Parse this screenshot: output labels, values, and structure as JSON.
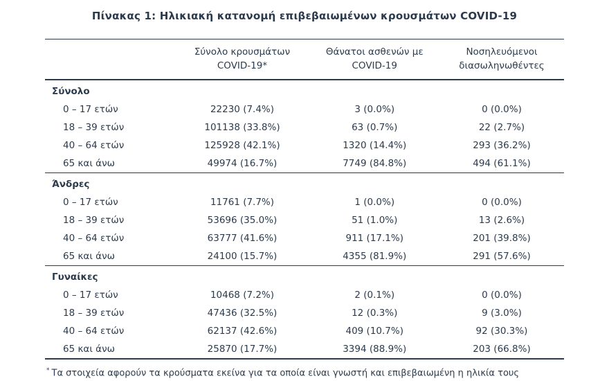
{
  "title": "Πίνακας 1: Ηλικιακή κατανομή επιβεβαιωμένων κρουσμάτων COVID-19",
  "table": {
    "headers": [
      {
        "line1": "Σύνολο κρουσμάτων",
        "line2": "COVID-19*"
      },
      {
        "line1": "Θάνατοι ασθενών με",
        "line2": "COVID-19"
      },
      {
        "line1": "Νοσηλευόμενοι",
        "line2": "διασωληνωθέντες"
      }
    ],
    "sections": [
      {
        "label": "Σύνολο",
        "rows": [
          {
            "label": "0 – 17 ετών",
            "cases": "22230 (7.4%)",
            "deaths": "3 (0.0%)",
            "intubated": "0 (0.0%)"
          },
          {
            "label": "18 – 39 ετών",
            "cases": "101138 (33.8%)",
            "deaths": "63 (0.7%)",
            "intubated": "22 (2.7%)"
          },
          {
            "label": "40 – 64 ετών",
            "cases": "125928 (42.1%)",
            "deaths": "1320 (14.4%)",
            "intubated": "293 (36.2%)"
          },
          {
            "label": "65 και άνω",
            "cases": "49974 (16.7%)",
            "deaths": "7749 (84.8%)",
            "intubated": "494 (61.1%)"
          }
        ]
      },
      {
        "label": "Άνδρες",
        "rows": [
          {
            "label": "0 – 17 ετών",
            "cases": "11761 (7.7%)",
            "deaths": "1 (0.0%)",
            "intubated": "0 (0.0%)"
          },
          {
            "label": "18 – 39 ετών",
            "cases": "53696 (35.0%)",
            "deaths": "51 (1.0%)",
            "intubated": "13 (2.6%)"
          },
          {
            "label": "40 – 64 ετών",
            "cases": "63777 (41.6%)",
            "deaths": "911 (17.1%)",
            "intubated": "201 (39.8%)"
          },
          {
            "label": "65 και άνω",
            "cases": "24100 (15.7%)",
            "deaths": "4355 (81.9%)",
            "intubated": "291 (57.6%)"
          }
        ]
      },
      {
        "label": "Γυναίκες",
        "rows": [
          {
            "label": "0 – 17 ετών",
            "cases": "10468 (7.2%)",
            "deaths": "2 (0.1%)",
            "intubated": "0 (0.0%)"
          },
          {
            "label": "18 – 39 ετών",
            "cases": "47436 (32.5%)",
            "deaths": "12 (0.3%)",
            "intubated": "9 (3.0%)"
          },
          {
            "label": "40 – 64 ετών",
            "cases": "62137 (42.6%)",
            "deaths": "409 (10.7%)",
            "intubated": "92 (30.3%)"
          },
          {
            "label": "65 και άνω",
            "cases": "25870 (17.7%)",
            "deaths": "3394 (88.9%)",
            "intubated": "203 (66.8%)"
          }
        ]
      }
    ]
  },
  "footnote": {
    "marker": "*",
    "text": "Τα στοιχεία αφορούν τα κρούσματα εκείνα για τα οποία είναι γνωστή και επιβεβαιωμένη η ηλικία τους"
  },
  "colors": {
    "text": "#2b3b4d",
    "background": "#ffffff"
  }
}
